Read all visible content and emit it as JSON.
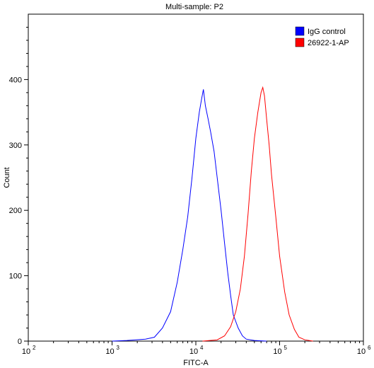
{
  "chart_data": {
    "type": "line",
    "title": "Multi-sample: P2",
    "xlabel": "FITC-A",
    "ylabel": "Count",
    "x_scale": "log",
    "xlim": [
      100,
      1000000
    ],
    "ylim": [
      0,
      500
    ],
    "x_ticks": [
      {
        "value": 100,
        "base": "10",
        "exp": "2"
      },
      {
        "value": 1000,
        "base": "10",
        "exp": "3"
      },
      {
        "value": 10000,
        "base": "10",
        "exp": "4"
      },
      {
        "value": 100000,
        "base": "10",
        "exp": "5"
      },
      {
        "value": 1000000,
        "base": "10",
        "exp": "6"
      }
    ],
    "y_ticks": [
      0,
      100,
      200,
      300,
      400
    ],
    "legend_position": "top-right",
    "grid": false,
    "series": [
      {
        "name": "IgG control",
        "color": "#0000ff",
        "x": [
          1000,
          1500,
          2500,
          3200,
          4000,
          5000,
          6000,
          7000,
          8000,
          9000,
          10000,
          11000,
          11700,
          12300,
          13000,
          14000,
          15000,
          16500,
          18000,
          20000,
          22000,
          24000,
          26000,
          28000,
          32000,
          36000,
          40000,
          50000,
          70000
        ],
        "y": [
          0,
          1,
          3,
          6,
          20,
          45,
          90,
          140,
          190,
          250,
          310,
          350,
          370,
          385,
          360,
          340,
          320,
          290,
          250,
          200,
          150,
          105,
          70,
          40,
          20,
          8,
          3,
          1,
          0
        ]
      },
      {
        "name": "26922-1-AP",
        "color": "#ff0000",
        "x": [
          12000,
          18000,
          22000,
          26000,
          30000,
          34000,
          38000,
          42000,
          46000,
          50000,
          55000,
          60000,
          63000,
          66000,
          70000,
          75000,
          80000,
          90000,
          100000,
          115000,
          130000,
          150000,
          170000,
          200000,
          250000
        ],
        "y": [
          0,
          2,
          8,
          22,
          45,
          80,
          130,
          195,
          260,
          310,
          350,
          380,
          388,
          375,
          340,
          300,
          255,
          190,
          130,
          75,
          40,
          18,
          6,
          2,
          0
        ]
      }
    ]
  }
}
